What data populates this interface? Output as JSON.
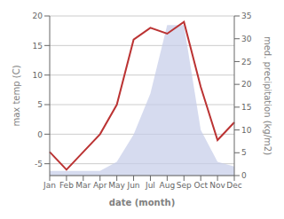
{
  "chart_data": {
    "type": "line",
    "xlabel": "date (month)",
    "ylabel": "max temp (C)",
    "y2label": "med. precipitation (kg/m2)",
    "categories": [
      "Jan",
      "Feb",
      "Mar",
      "Apr",
      "May",
      "Jun",
      "Jul",
      "Aug",
      "Sep",
      "Oct",
      "Nov",
      "Dec"
    ],
    "series": [
      {
        "type": "area",
        "axis": "y2",
        "color": "#c5cce8",
        "values": [
          1,
          1,
          1,
          1,
          3,
          9,
          18,
          33,
          33,
          10,
          3,
          2
        ]
      },
      {
        "type": "line",
        "color": "#bb3333",
        "values": [
          -3,
          -6,
          -3,
          0,
          5,
          16,
          18,
          17,
          19,
          8,
          -1,
          2
        ]
      }
    ],
    "ylim": [
      -7,
      20
    ],
    "yticks": [
      -5,
      0,
      5,
      10,
      15,
      20
    ],
    "y2lim": [
      0,
      35
    ],
    "y2ticks": [
      0,
      5,
      10,
      15,
      20,
      25,
      30,
      35
    ],
    "grid": true
  }
}
